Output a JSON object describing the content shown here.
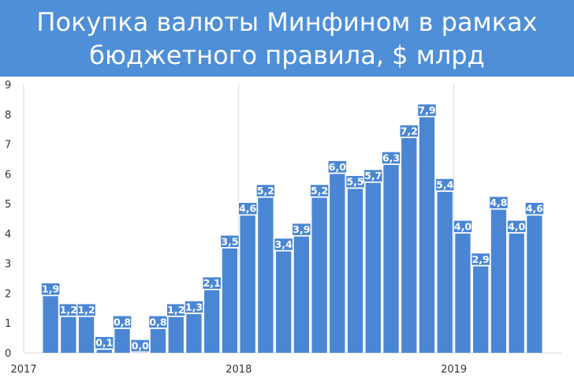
{
  "header": {
    "title_line1": "Покупка валюты Минфином в рамках",
    "title_line2": "бюджетного правила, $ млрд"
  },
  "colors": {
    "header_bg": "#4f8fd8",
    "bar": "#4a86d4",
    "label_bg": "#4a86d4",
    "grid": "#d9d9d9"
  },
  "chart_data": {
    "type": "bar",
    "title": "Покупка валюты Минфином в рамках бюджетного правила, $ млрд",
    "ylim": [
      0,
      9
    ],
    "yticks": [
      0,
      1,
      2,
      3,
      4,
      5,
      6,
      7,
      8,
      9
    ],
    "grid": "vertical lines at year boundaries",
    "x_year_labels": [
      {
        "label": "2017",
        "at_index": 0
      },
      {
        "label": "2018",
        "at_index": 12
      },
      {
        "label": "2019",
        "at_index": 24
      }
    ],
    "categories": [
      "2017-01",
      "2017-02",
      "2017-03",
      "2017-04",
      "2017-05",
      "2017-06",
      "2017-07",
      "2017-08",
      "2017-09",
      "2017-10",
      "2017-11",
      "2017-12",
      "2018-01",
      "2018-02",
      "2018-03",
      "2018-04",
      "2018-05",
      "2018-06",
      "2018-07",
      "2018-08",
      "2018-09",
      "2018-10",
      "2018-11",
      "2018-12",
      "2019-01",
      "2019-02",
      "2019-03",
      "2019-04",
      "2019-05",
      "2019-06"
    ],
    "values": [
      null,
      1.9,
      1.2,
      1.2,
      0.1,
      0.8,
      0.0,
      0.8,
      1.2,
      1.3,
      2.1,
      3.5,
      4.6,
      5.2,
      3.4,
      3.9,
      5.2,
      6.0,
      5.5,
      5.7,
      6.3,
      7.2,
      7.9,
      5.4,
      4.0,
      2.9,
      4.8,
      4.0,
      4.6,
      null
    ],
    "labels": [
      null,
      "1,9",
      "1,2",
      "1,2",
      "0,1",
      "0,8",
      "0,0",
      "0,8",
      "1,2",
      "1,3",
      "2,1",
      "3,5",
      "4,6",
      "5,2",
      "3,4",
      "3,9",
      "5,2",
      "6,0",
      "5,5",
      "5,7",
      "6,3",
      "7,2",
      "7,9",
      "5,4",
      "4,0",
      "2,9",
      "4,8",
      "4,0",
      "4,6",
      null
    ]
  }
}
